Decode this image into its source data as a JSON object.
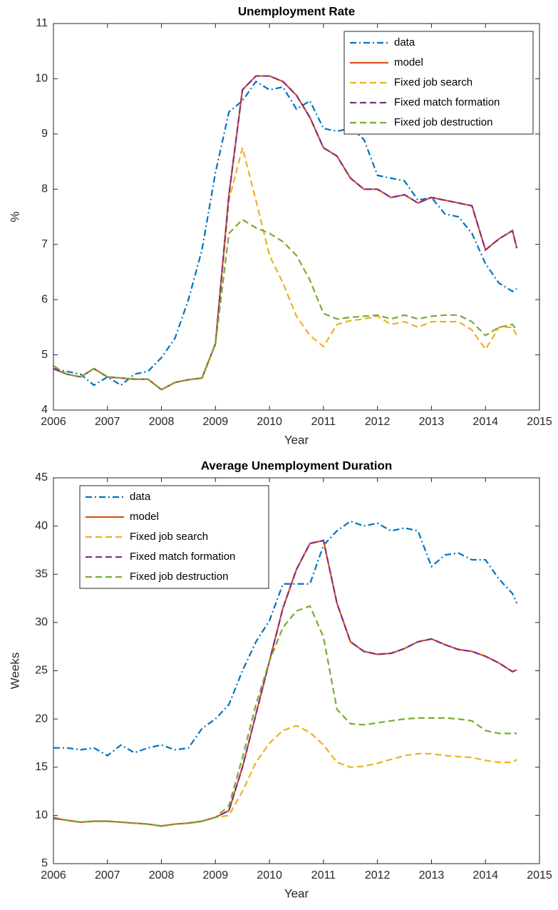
{
  "chart_data": [
    {
      "type": "line",
      "title": "Unemployment Rate",
      "xlabel": "Year",
      "ylabel": "%",
      "x": [
        2006,
        2006.25,
        2006.5,
        2006.75,
        2007,
        2007.25,
        2007.5,
        2007.75,
        2008,
        2008.25,
        2008.5,
        2008.75,
        2009,
        2009.25,
        2009.5,
        2009.75,
        2010,
        2010.25,
        2010.5,
        2010.75,
        2011,
        2011.25,
        2011.5,
        2011.75,
        2012,
        2012.25,
        2012.5,
        2012.75,
        2013,
        2013.25,
        2013.5,
        2013.75,
        2014,
        2014.25,
        2014.5,
        2014.58
      ],
      "series": [
        {
          "name": "data",
          "color": "#0072bd",
          "style": "dashdot",
          "values": [
            4.75,
            4.7,
            4.65,
            4.45,
            4.6,
            4.45,
            4.65,
            4.7,
            4.95,
            5.3,
            6.0,
            6.9,
            8.3,
            9.4,
            9.6,
            9.95,
            9.8,
            9.85,
            9.45,
            9.6,
            9.1,
            9.05,
            9.1,
            8.9,
            8.25,
            8.2,
            8.15,
            7.8,
            7.85,
            7.55,
            7.5,
            7.2,
            6.65,
            6.3,
            6.15,
            6.2
          ]
        },
        {
          "name": "model",
          "color": "#d95319",
          "style": "solid",
          "values": [
            4.75,
            4.65,
            4.6,
            4.75,
            4.6,
            4.58,
            4.56,
            4.56,
            4.37,
            4.5,
            4.55,
            4.58,
            5.2,
            7.9,
            9.8,
            10.05,
            10.05,
            9.95,
            9.7,
            9.3,
            8.75,
            8.6,
            8.2,
            8.0,
            8.0,
            7.85,
            7.9,
            7.75,
            7.85,
            7.8,
            7.75,
            7.7,
            6.9,
            7.1,
            7.25,
            6.93
          ]
        },
        {
          "name": "Fixed job search",
          "color": "#edb120",
          "style": "dashed",
          "values": [
            4.75,
            4.65,
            4.6,
            4.75,
            4.6,
            4.58,
            4.56,
            4.56,
            4.37,
            4.5,
            4.55,
            4.58,
            5.2,
            7.8,
            8.75,
            7.8,
            6.8,
            6.3,
            5.7,
            5.35,
            5.15,
            5.55,
            5.62,
            5.65,
            5.7,
            5.55,
            5.6,
            5.5,
            5.6,
            5.6,
            5.6,
            5.45,
            5.1,
            5.5,
            5.5,
            5.35
          ]
        },
        {
          "name": "Fixed match formation",
          "color": "#7e2f8e",
          "style": "dashed",
          "values": [
            4.75,
            4.65,
            4.6,
            4.75,
            4.6,
            4.58,
            4.56,
            4.56,
            4.37,
            4.5,
            4.55,
            4.58,
            5.2,
            7.9,
            9.8,
            10.05,
            10.05,
            9.95,
            9.7,
            9.3,
            8.75,
            8.6,
            8.2,
            8.0,
            8.0,
            7.85,
            7.9,
            7.75,
            7.85,
            7.8,
            7.75,
            7.7,
            6.9,
            7.1,
            7.25,
            6.93
          ]
        },
        {
          "name": "Fixed job destruction",
          "color": "#77ac30",
          "style": "dashed",
          "values": [
            4.8,
            4.65,
            4.6,
            4.75,
            4.6,
            4.58,
            4.56,
            4.56,
            4.37,
            4.5,
            4.55,
            4.58,
            5.2,
            7.2,
            7.45,
            7.3,
            7.2,
            7.05,
            6.8,
            6.35,
            5.75,
            5.65,
            5.68,
            5.7,
            5.72,
            5.65,
            5.72,
            5.65,
            5.7,
            5.72,
            5.72,
            5.6,
            5.35,
            5.5,
            5.55,
            5.45
          ]
        }
      ],
      "xlim": [
        2006,
        2015
      ],
      "xticks": [
        2006,
        2007,
        2008,
        2009,
        2010,
        2011,
        2012,
        2013,
        2014,
        2015
      ],
      "ylim": [
        4,
        11
      ],
      "yticks": [
        4,
        5,
        6,
        7,
        8,
        9,
        10,
        11
      ],
      "legend": "upper right",
      "grid": false
    },
    {
      "type": "line",
      "title": "Average Unemployment Duration",
      "xlabel": "Year",
      "ylabel": "Weeks",
      "x": [
        2006,
        2006.25,
        2006.5,
        2006.75,
        2007,
        2007.25,
        2007.5,
        2007.75,
        2008,
        2008.25,
        2008.5,
        2008.75,
        2009,
        2009.25,
        2009.5,
        2009.75,
        2010,
        2010.25,
        2010.5,
        2010.75,
        2011,
        2011.25,
        2011.5,
        2011.75,
        2012,
        2012.25,
        2012.5,
        2012.75,
        2013,
        2013.25,
        2013.5,
        2013.75,
        2014,
        2014.25,
        2014.5,
        2014.58
      ],
      "series": [
        {
          "name": "data",
          "color": "#0072bd",
          "style": "dashdot",
          "values": [
            17,
            17,
            16.8,
            17,
            16.2,
            17.3,
            16.5,
            17,
            17.3,
            16.8,
            17.0,
            19.0,
            20.0,
            21.5,
            25,
            28,
            30.2,
            34,
            34,
            34.0,
            38.0,
            39.5,
            40.5,
            40,
            40.3,
            39.5,
            39.8,
            39.5,
            35.8,
            37,
            37.2,
            36.5,
            36.5,
            34.5,
            33,
            32
          ]
        },
        {
          "name": "model",
          "color": "#d95319",
          "style": "solid",
          "values": [
            9.7,
            9.5,
            9.3,
            9.4,
            9.4,
            9.3,
            9.2,
            9.1,
            8.9,
            9.1,
            9.2,
            9.4,
            9.8,
            10.5,
            15,
            20.5,
            26,
            31.5,
            35.5,
            38.2,
            38.5,
            32,
            28,
            27,
            26.7,
            26.8,
            27.3,
            28,
            28.3,
            27.7,
            27.2,
            27.0,
            26.5,
            25.8,
            24.9,
            25.1
          ]
        },
        {
          "name": "Fixed job search",
          "color": "#edb120",
          "style": "dashed",
          "values": [
            9.7,
            9.5,
            9.3,
            9.4,
            9.4,
            9.3,
            9.2,
            9.1,
            8.9,
            9.1,
            9.2,
            9.4,
            9.8,
            10,
            12.5,
            15.5,
            17.5,
            18.8,
            19.3,
            18.6,
            17.3,
            15.5,
            15,
            15.1,
            15.4,
            15.8,
            16.2,
            16.4,
            16.4,
            16.2,
            16.1,
            16.0,
            15.7,
            15.5,
            15.5,
            15.8
          ]
        },
        {
          "name": "Fixed match formation",
          "color": "#7e2f8e",
          "style": "dashed",
          "values": [
            9.7,
            9.5,
            9.3,
            9.4,
            9.4,
            9.3,
            9.2,
            9.1,
            8.9,
            9.1,
            9.2,
            9.4,
            9.8,
            10.5,
            15,
            20.5,
            26,
            31.5,
            35.5,
            38.2,
            38.5,
            32,
            28,
            27,
            26.7,
            26.8,
            27.3,
            28,
            28.3,
            27.7,
            27.2,
            27.0,
            26.5,
            25.8,
            24.9,
            25.1
          ]
        },
        {
          "name": "Fixed job destruction",
          "color": "#77ac30",
          "style": "dashed",
          "values": [
            9.8,
            9.5,
            9.3,
            9.4,
            9.4,
            9.3,
            9.2,
            9.1,
            8.9,
            9.1,
            9.2,
            9.4,
            9.8,
            11,
            16,
            21.5,
            26,
            29.5,
            31.2,
            31.7,
            28.5,
            21,
            19.5,
            19.4,
            19.6,
            19.8,
            20,
            20.1,
            20.1,
            20.1,
            20,
            19.8,
            18.8,
            18.5,
            18.5,
            18.5
          ]
        }
      ],
      "xlim": [
        2006,
        2015
      ],
      "xticks": [
        2006,
        2007,
        2008,
        2009,
        2010,
        2011,
        2012,
        2013,
        2014,
        2015
      ],
      "ylim": [
        5,
        45
      ],
      "yticks": [
        5,
        10,
        15,
        20,
        25,
        30,
        35,
        40,
        45
      ],
      "legend": "upper left",
      "grid": false
    }
  ]
}
